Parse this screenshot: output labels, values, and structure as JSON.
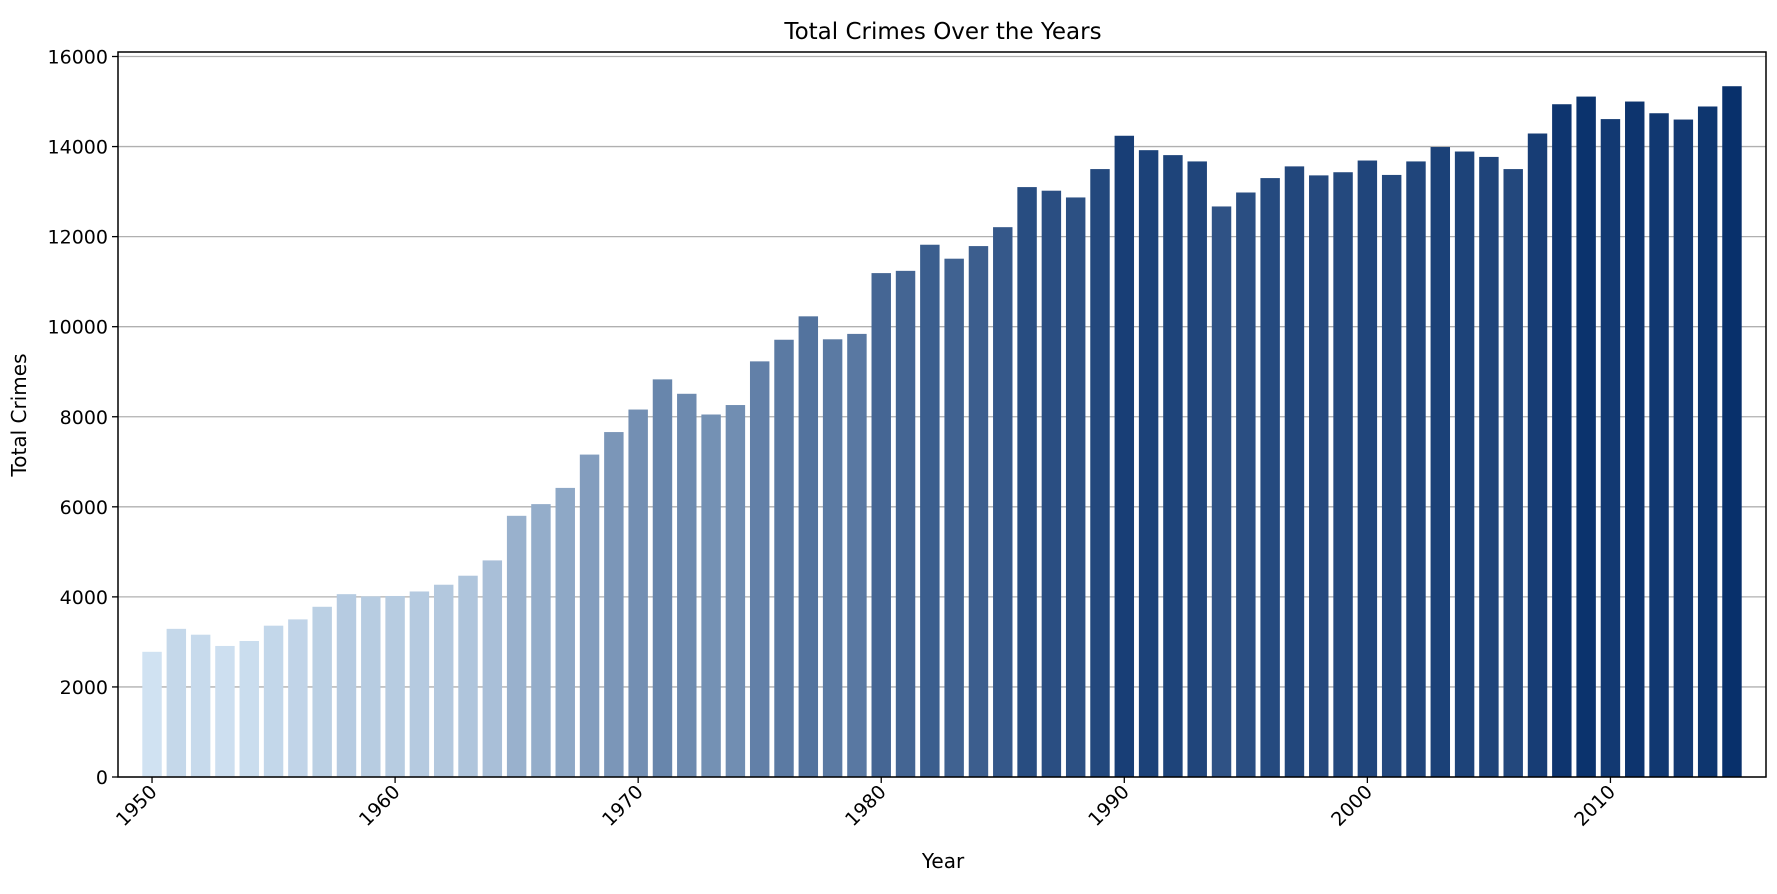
{
  "chart_data": {
    "type": "bar",
    "title": "Total Crimes Over the Years",
    "xlabel": "Year",
    "ylabel": "Total Crimes",
    "x": [
      1950,
      1951,
      1952,
      1953,
      1954,
      1955,
      1956,
      1957,
      1958,
      1959,
      1960,
      1961,
      1962,
      1963,
      1964,
      1965,
      1966,
      1967,
      1968,
      1969,
      1970,
      1971,
      1972,
      1973,
      1974,
      1975,
      1976,
      1977,
      1978,
      1979,
      1980,
      1981,
      1982,
      1983,
      1984,
      1985,
      1986,
      1987,
      1988,
      1989,
      1990,
      1991,
      1992,
      1993,
      1994,
      1995,
      1996,
      1997,
      1998,
      1999,
      2000,
      2001,
      2002,
      2003,
      2004,
      2005,
      2006,
      2007,
      2008,
      2009,
      2010,
      2011,
      2012,
      2013,
      2014,
      2015
    ],
    "values": [
      2780,
      3290,
      3160,
      2910,
      3020,
      3360,
      3500,
      3780,
      4060,
      4010,
      4020,
      4120,
      4270,
      4470,
      4810,
      5800,
      6060,
      6420,
      7160,
      7660,
      8160,
      8830,
      8510,
      8050,
      8260,
      9230,
      9710,
      10230,
      9720,
      9840,
      11190,
      11240,
      11820,
      11510,
      11790,
      12210,
      13100,
      13020,
      12870,
      13500,
      14240,
      13920,
      13810,
      13670,
      12670,
      12980,
      13300,
      13560,
      13360,
      13430,
      13690,
      13370,
      13670,
      13990,
      13890,
      13770,
      13500,
      14290,
      14940,
      15110,
      14610,
      15000,
      14740,
      14600,
      14890,
      15340
    ],
    "xticks": [
      "1950",
      "1960",
      "1970",
      "1980",
      "1990",
      "2000",
      "2010"
    ],
    "yticks": [
      "0",
      "2000",
      "4000",
      "6000",
      "8000",
      "10000",
      "12000",
      "14000",
      "16000"
    ],
    "xlim": [
      1948.6,
      2016.4
    ],
    "ylim": [
      0,
      16100
    ],
    "grid": "horizontal",
    "colormap": "Blues",
    "colors": {
      "light": "#d0e2f2",
      "dark": "#08306b",
      "grid": "#b0b0b0"
    }
  }
}
